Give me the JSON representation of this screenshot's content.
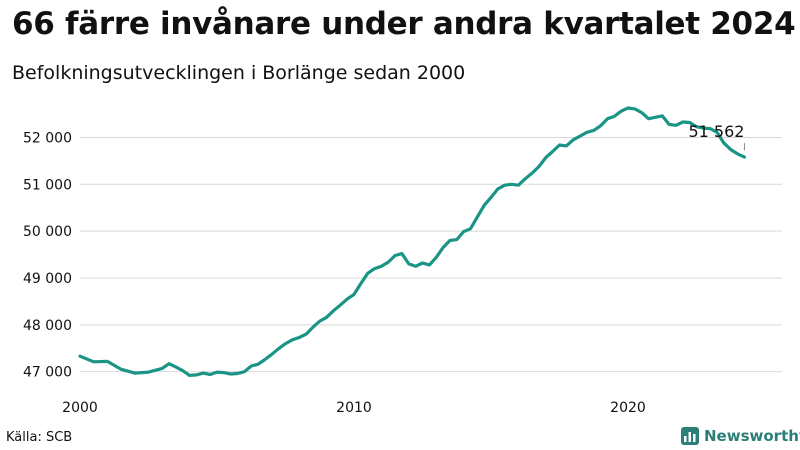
{
  "title": "66 färre invånare under andra kvartalet 2024",
  "subtitle": "Befolkningsutvecklingen i Borlänge sedan 2000",
  "source": "Källa: SCB",
  "brand": {
    "name": "Newsworthy",
    "icon": "newsworthy-bar-chart-icon"
  },
  "colors": {
    "line": "#1a9485",
    "grid": "#d9d9d9",
    "text": "#111111",
    "brand": "#2b7f78"
  },
  "chart_data": {
    "type": "line",
    "x_tick_labels": [
      "2000",
      "2010",
      "2020"
    ],
    "x_tick_values": [
      2000,
      2010,
      2020
    ],
    "y_tick_labels": [
      "47 000",
      "48 000",
      "49 000",
      "50 000",
      "51 000",
      "52 000"
    ],
    "y_tick_values": [
      47000,
      48000,
      49000,
      50000,
      51000,
      52000
    ],
    "xlim": [
      2000,
      2025
    ],
    "ylim": [
      46950,
      52800
    ],
    "grid": "horizontal",
    "last_value_label": "51 562",
    "series": [
      {
        "x": [
          2000.0,
          2000.5,
          2001.0,
          2001.5,
          2002.0,
          2002.5,
          2003.0,
          2003.25,
          2003.5,
          2003.75,
          2004.0,
          2004.25,
          2004.5,
          2004.75,
          2005.0,
          2005.25,
          2005.5,
          2005.75,
          2006.0,
          2006.25,
          2006.5,
          2006.75,
          2007.0,
          2007.25,
          2007.5,
          2007.75,
          2008.0,
          2008.25,
          2008.5,
          2008.75,
          2009.0,
          2009.25,
          2009.5,
          2009.75,
          2010.0,
          2010.25,
          2010.5,
          2010.75,
          2011.0,
          2011.25,
          2011.5,
          2011.75,
          2012.0,
          2012.25,
          2012.5,
          2012.75,
          2013.0,
          2013.25,
          2013.5,
          2013.75,
          2014.0,
          2014.25,
          2014.5,
          2014.75,
          2015.0,
          2015.25,
          2015.5,
          2015.75,
          2016.0,
          2016.25,
          2016.5,
          2016.75,
          2017.0,
          2017.25,
          2017.5,
          2017.75,
          2018.0,
          2018.25,
          2018.5,
          2018.75,
          2019.0,
          2019.25,
          2019.5,
          2019.75,
          2020.0,
          2020.25,
          2020.5,
          2020.75,
          2021.0,
          2021.25,
          2021.5,
          2021.75,
          2022.0,
          2022.25,
          2022.5,
          2022.75,
          2023.0,
          2023.25,
          2023.5,
          2023.75,
          2024.0,
          2024.25
        ],
        "values": [
          47330,
          47210,
          47220,
          47050,
          46970,
          46990,
          47070,
          47170,
          47100,
          47020,
          46920,
          46930,
          46970,
          46940,
          46990,
          46980,
          46950,
          46960,
          47000,
          47120,
          47160,
          47260,
          47370,
          47490,
          47600,
          47680,
          47730,
          47800,
          47950,
          48080,
          48160,
          48300,
          48420,
          48550,
          48650,
          48880,
          49100,
          49200,
          49250,
          49340,
          49480,
          49520,
          49300,
          49250,
          49320,
          49280,
          49440,
          49650,
          49800,
          49820,
          49990,
          50050,
          50300,
          50550,
          50720,
          50900,
          50980,
          51000,
          50980,
          51120,
          51240,
          51380,
          51570,
          51700,
          51840,
          51820,
          51950,
          52030,
          52110,
          52150,
          52250,
          52400,
          52450,
          52560,
          52630,
          52610,
          52530,
          52400,
          52430,
          52460,
          52280,
          52260,
          52330,
          52320,
          52230,
          52200,
          52190,
          52110,
          51880,
          51740,
          51650,
          51580
        ]
      }
    ]
  }
}
